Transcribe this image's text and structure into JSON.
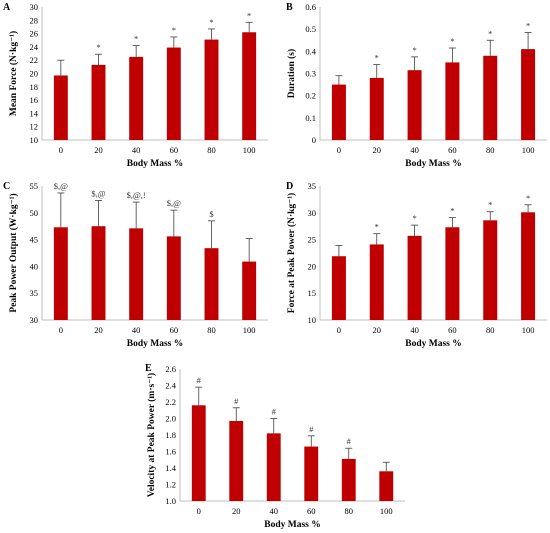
{
  "chart_data": [
    {
      "panel": "A",
      "type": "bar",
      "categories": [
        "0",
        "20",
        "40",
        "60",
        "80",
        "100"
      ],
      "values": [
        19.7,
        21.3,
        22.5,
        23.9,
        25.1,
        26.2
      ],
      "errors": [
        2.3,
        1.6,
        1.7,
        1.6,
        1.6,
        1.5
      ],
      "annotations": [
        "",
        "*",
        "*",
        "*",
        "*",
        "*"
      ],
      "xlabel": "Body Mass %",
      "ylabel": "Mean Force (N·kg⁻¹)",
      "ylim": [
        10,
        30
      ],
      "yticks": [
        "10",
        "12",
        "14",
        "16",
        "18",
        "20",
        "22",
        "24",
        "26",
        "28",
        "30"
      ],
      "grid": false,
      "color": "#c00000"
    },
    {
      "panel": "B",
      "type": "bar",
      "categories": [
        "0",
        "20",
        "40",
        "60",
        "80",
        "100"
      ],
      "values": [
        0.25,
        0.28,
        0.315,
        0.35,
        0.38,
        0.41
      ],
      "errors": [
        0.04,
        0.06,
        0.06,
        0.065,
        0.07,
        0.075
      ],
      "annotations": [
        "",
        "*",
        "*",
        "*",
        "*",
        "*"
      ],
      "xlabel": "Body Mass %",
      "ylabel": "Duration (s)",
      "ylim": [
        0,
        0.6
      ],
      "yticks": [
        "0",
        "0.1",
        "0.2",
        "0.3",
        "0.4",
        "0.5",
        "0.6"
      ],
      "grid": false,
      "color": "#c00000"
    },
    {
      "panel": "C",
      "type": "bar",
      "categories": [
        "0",
        "20",
        "40",
        "60",
        "80",
        "100"
      ],
      "values": [
        47.3,
        47.5,
        47.1,
        45.6,
        43.4,
        40.9
      ],
      "errors": [
        6.4,
        4.8,
        4.9,
        4.9,
        5.1,
        4.3
      ],
      "annotations": [
        "$,@",
        "$,@",
        "$,@,!",
        "$,@",
        "$",
        ""
      ],
      "xlabel": "Body Mass %",
      "ylabel": "Peak Power Output (W·kg⁻¹)",
      "ylim": [
        30,
        55
      ],
      "yticks": [
        "30",
        "35",
        "40",
        "45",
        "50",
        "55"
      ],
      "grid": false,
      "color": "#c00000"
    },
    {
      "panel": "D",
      "type": "bar",
      "categories": [
        "0",
        "20",
        "40",
        "60",
        "80",
        "100"
      ],
      "values": [
        21.9,
        24.1,
        25.7,
        27.3,
        28.6,
        30.1
      ],
      "errors": [
        2.0,
        2.0,
        2.0,
        1.8,
        1.6,
        1.4
      ],
      "annotations": [
        "",
        "*",
        "*",
        "*",
        "*",
        "*"
      ],
      "xlabel": "Body Mass %",
      "ylabel": "Force at Peak Power (N·kg⁻¹)",
      "ylim": [
        10,
        35
      ],
      "yticks": [
        "10",
        "15",
        "20",
        "25",
        "30",
        "35"
      ],
      "grid": false,
      "color": "#c00000"
    },
    {
      "panel": "E",
      "type": "bar",
      "categories": [
        "0",
        "20",
        "40",
        "60",
        "80",
        "100"
      ],
      "values": [
        2.16,
        1.97,
        1.82,
        1.66,
        1.51,
        1.36
      ],
      "errors": [
        0.22,
        0.16,
        0.18,
        0.13,
        0.13,
        0.11
      ],
      "annotations": [
        "#",
        "#",
        "#",
        "#",
        "#",
        ""
      ],
      "xlabel": "Body Mass %",
      "ylabel": "Velocity at Peak Power (m·s⁻¹)",
      "ylim": [
        1.0,
        2.6
      ],
      "yticks": [
        "1.0",
        "1.2",
        "1.4",
        "1.6",
        "1.8",
        "2.0",
        "2.2",
        "2.4",
        "2.6"
      ],
      "grid": false,
      "color": "#c00000"
    }
  ]
}
